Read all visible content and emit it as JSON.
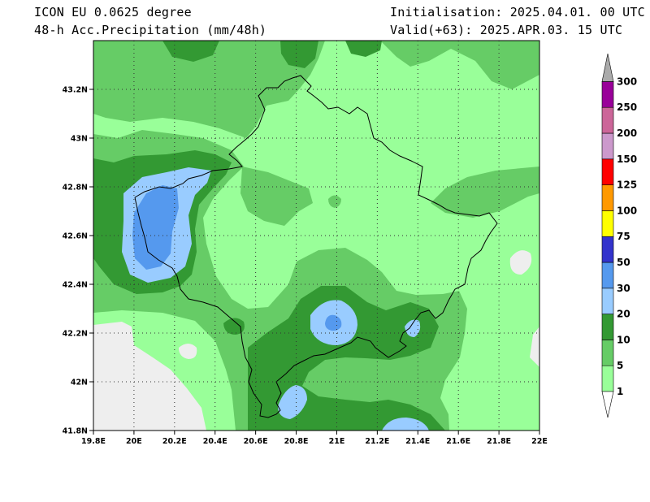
{
  "header": {
    "model_title": "ICON EU 0.0625 degree",
    "field_title": "48-h Acc.Precipitation (mm/48h)",
    "init_text": "Initialisation: 2025.04.01. 00 UTC",
    "valid_text": "Valid(+63): 2025.APR.03. 15 UTC"
  },
  "map": {
    "lon_range": [
      19.8,
      22.0
    ],
    "lat_range": [
      41.8,
      43.4
    ],
    "lon_ticks": [
      19.8,
      20.0,
      20.2,
      20.4,
      20.6,
      20.8,
      21.0,
      21.2,
      21.4,
      21.6,
      21.8,
      22.0
    ],
    "lon_tick_labels": [
      "19.8E",
      "20E",
      "20.2E",
      "20.4E",
      "20.6E",
      "20.8E",
      "21E",
      "21.2E",
      "21.4E",
      "21.6E",
      "21.8E",
      "22E"
    ],
    "lat_ticks": [
      41.8,
      42.0,
      42.2,
      42.4,
      42.6,
      42.8,
      43.0,
      43.2
    ],
    "lat_tick_labels": [
      "41.8N",
      "42N",
      "42.2N",
      "42.4N",
      "42.6N",
      "42.8N",
      "43N",
      "43.2N"
    ],
    "grid": "dotted"
  },
  "legend": {
    "placement": "right",
    "levels": [
      "1",
      "5",
      "10",
      "20",
      "30",
      "50",
      "75",
      "100",
      "125",
      "150",
      "200",
      "250",
      "300"
    ],
    "bins": [
      {
        "range": "1-5",
        "color": "#99ff99"
      },
      {
        "range": "5-10",
        "color": "#66cc66"
      },
      {
        "range": "10-20",
        "color": "#339933"
      },
      {
        "range": "20-30",
        "color": "#99ccff"
      },
      {
        "range": "30-50",
        "color": "#5599ee"
      },
      {
        "range": "50-75",
        "color": "#3333cc"
      },
      {
        "range": "75-100",
        "color": "#ffff00"
      },
      {
        "range": "100-125",
        "color": "#ff9900"
      },
      {
        "range": "125-150",
        "color": "#ff0000"
      },
      {
        "range": "150-200",
        "color": "#cc99cc"
      },
      {
        "range": "200-250",
        "color": "#cc6699"
      },
      {
        "range": "250-300",
        "color": "#990099"
      }
    ],
    "under_color": "#ffffff",
    "over_color": "#aaaaaa"
  },
  "colors": {
    "no_data": "#eeeeee",
    "border": "#000000"
  }
}
